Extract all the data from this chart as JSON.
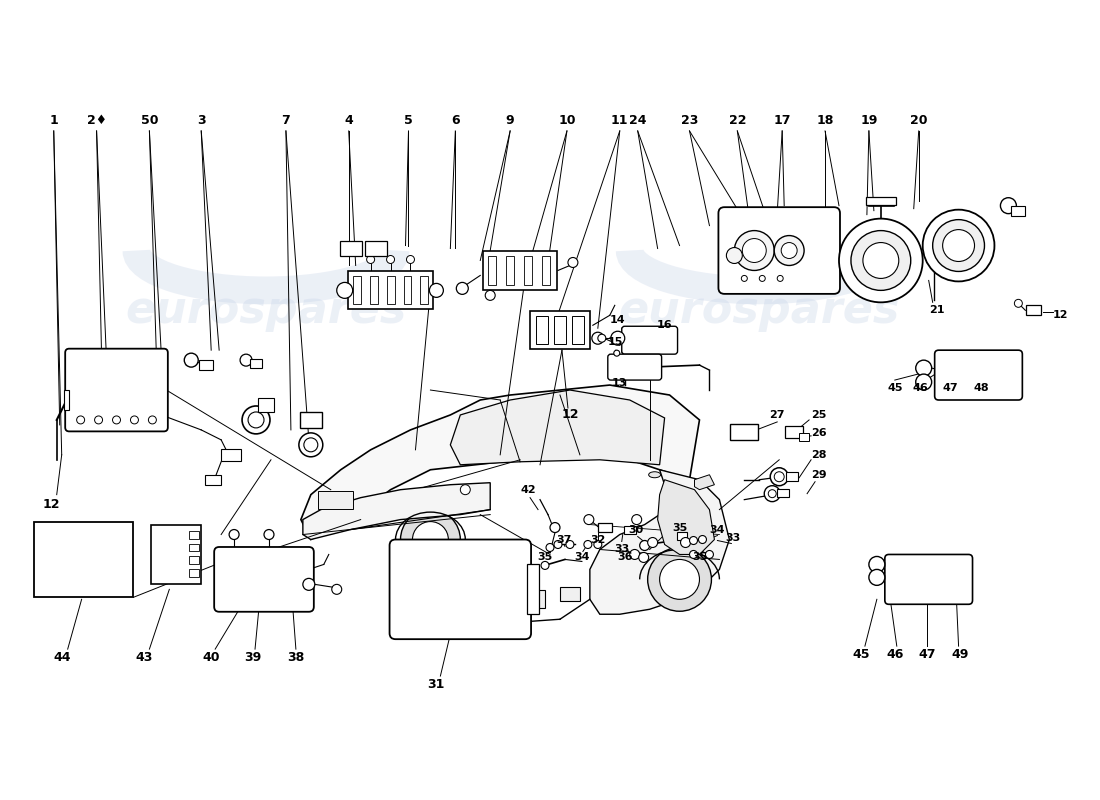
{
  "background_color": "#ffffff",
  "watermark_color": "#c8d4e8",
  "watermark_alpha": 0.35,
  "line_color": "#000000",
  "label_color": "#000000"
}
